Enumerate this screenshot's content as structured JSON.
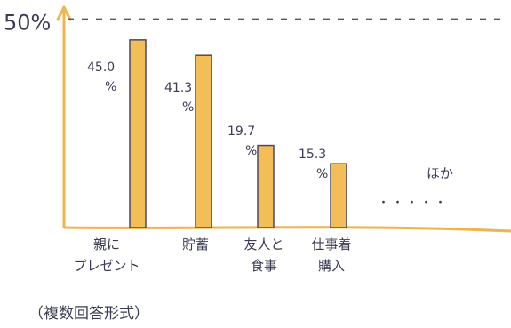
{
  "chart_data": {
    "type": "bar",
    "categories": [
      "親に\nプレゼント",
      "貯蓄",
      "友人と\n食事",
      "仕事着\n購入",
      "ほか"
    ],
    "values": [
      45.0,
      41.3,
      19.7,
      15.3,
      null
    ],
    "value_labels": [
      "45.0\n%",
      "41.3\n%",
      "19.7\n%",
      "15.3\n%",
      ""
    ],
    "others_label": "ほか",
    "others_dots": "・・・・・",
    "reference_line": {
      "value": 50,
      "label": "50%"
    },
    "ylim": [
      0,
      52
    ],
    "grid": false,
    "footnote": "（複数回答形式）"
  },
  "colors": {
    "bar": "#f3bd57",
    "bar_outline": "#4a4a66",
    "axis": "#f0b44a",
    "reference_label": "#d2456a",
    "dashed_line": "#555566",
    "text": "#3b3b55",
    "category_highlight": "#e98aa6"
  }
}
